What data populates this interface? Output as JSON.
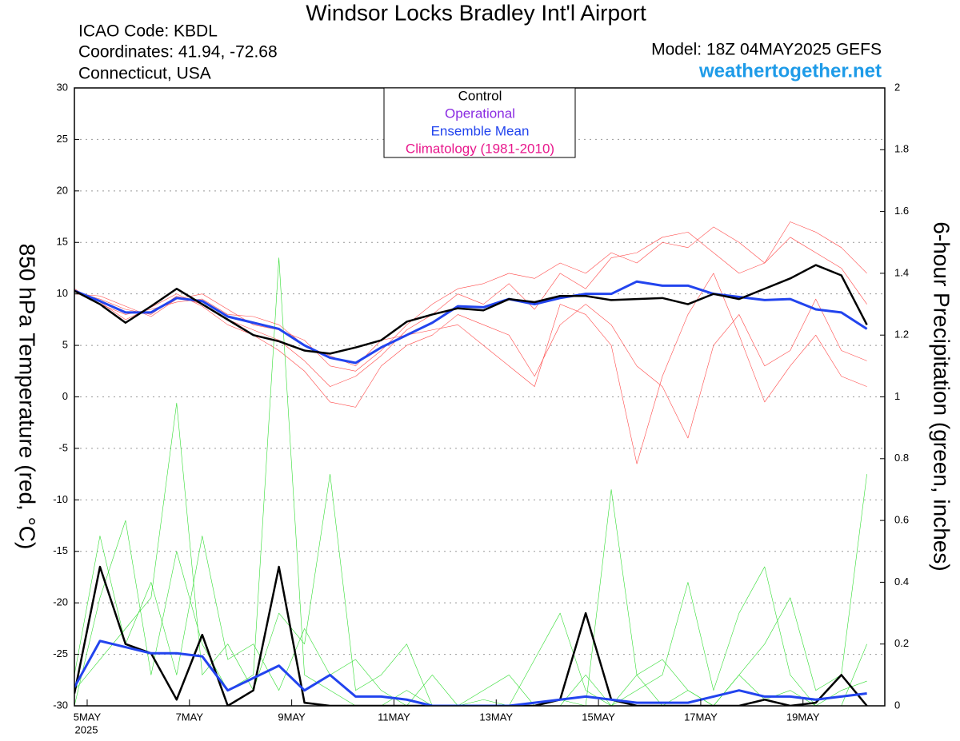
{
  "chart_data": {
    "type": "line",
    "title": "Windsor Locks Bradley Int'l Airport",
    "info_left": [
      "ICAO Code: KBDL",
      "Coordinates: 41.94, -72.68",
      "Connecticut, USA"
    ],
    "model": "Model: 18Z 04MAY2025 GEFS",
    "site": "weathertogether.net",
    "ylabel": "850 hPa Temperature (red, °C)",
    "y2label": "6-hour Precipitation (green, inches)",
    "x_year_label": "2025",
    "xlim": [
      -0.25,
      15.6
    ],
    "xticks": [
      {
        "value": 0,
        "label": "5MAY"
      },
      {
        "value": 2,
        "label": "7MAY"
      },
      {
        "value": 4,
        "label": "9MAY"
      },
      {
        "value": 6,
        "label": "11MAY"
      },
      {
        "value": 8,
        "label": "13MAY"
      },
      {
        "value": 10,
        "label": "15MAY"
      },
      {
        "value": 12,
        "label": "17MAY"
      },
      {
        "value": 14,
        "label": "19MAY"
      }
    ],
    "ylim": [
      -30,
      30
    ],
    "yticks": [
      -30,
      -25,
      -20,
      -15,
      -10,
      -5,
      0,
      5,
      10,
      15,
      20,
      25,
      30
    ],
    "y2lim": [
      0,
      2
    ],
    "y2ticks": [
      0,
      0.2,
      0.4,
      0.6,
      0.8,
      1,
      1.2,
      1.4,
      1.6,
      1.8,
      2
    ],
    "grid": true,
    "legend_extra": [
      {
        "label": "Operational",
        "color": "#8a2be2"
      },
      {
        "label": "Climatology (1981-2010)",
        "color": "#e8188c"
      }
    ],
    "x": [
      -0.25,
      0.25,
      0.75,
      1.25,
      1.75,
      2.25,
      2.75,
      3.25,
      3.75,
      4.25,
      4.75,
      5.25,
      5.75,
      6.25,
      6.75,
      7.25,
      7.75,
      8.25,
      8.75,
      9.25,
      9.75,
      10.25,
      10.75,
      11.25,
      11.75,
      12.25,
      12.75,
      13.25,
      13.75,
      14.25,
      14.75,
      15.25
    ],
    "series": [
      {
        "color": "#ff4a4a",
        "line_width": 0.6,
        "axis": "y",
        "values": [
          10.2,
          9.5,
          8.5,
          8.0,
          9.8,
          9.0,
          7.5,
          6.5,
          5.5,
          3.5,
          1.0,
          2.0,
          4.0,
          6.5,
          8.0,
          10.0,
          9.0,
          11.0,
          8.5,
          12.0,
          10.5,
          13.5,
          14.0,
          15.5,
          16.0,
          14.0,
          12.0,
          13.0,
          15.5,
          14.0,
          12.5,
          9.0
        ]
      },
      {
        "color": "#ff4a4a",
        "line_width": 0.6,
        "axis": "y",
        "values": [
          10.5,
          9.0,
          8.0,
          8.5,
          9.2,
          9.5,
          8.0,
          7.8,
          7.0,
          5.0,
          4.0,
          3.0,
          5.5,
          6.0,
          6.5,
          7.0,
          5.0,
          3.0,
          1.0,
          9.0,
          8.0,
          5.0,
          -6.5,
          2.0,
          8.0,
          12.0,
          6.0,
          -0.5,
          3.0,
          6.0,
          2.0,
          1.0
        ]
      },
      {
        "color": "#ff4a4a",
        "line_width": 0.6,
        "axis": "y",
        "values": [
          10.0,
          9.8,
          8.8,
          7.8,
          9.5,
          10.0,
          8.5,
          7.0,
          6.5,
          5.5,
          3.0,
          2.5,
          4.5,
          7.0,
          9.0,
          10.5,
          11.0,
          12.0,
          11.5,
          13.0,
          12.0,
          14.0,
          13.0,
          15.0,
          14.5,
          16.5,
          15.0,
          13.0,
          17.0,
          16.0,
          14.5,
          12.0
        ]
      },
      {
        "color": "#ff4a4a",
        "line_width": 0.6,
        "axis": "y",
        "values": [
          10.4,
          9.2,
          7.5,
          8.7,
          10.0,
          8.8,
          7.0,
          6.0,
          4.5,
          2.5,
          -0.5,
          -1.0,
          3.0,
          5.0,
          6.0,
          8.0,
          7.0,
          6.0,
          2.0,
          7.0,
          9.0,
          7.0,
          3.0,
          1.0,
          -4.0,
          5.0,
          8.0,
          3.0,
          4.5,
          9.5,
          4.5,
          3.5
        ]
      },
      {
        "color": "#33dd33",
        "line_width": 0.6,
        "axis": "y2",
        "values": [
          0.0,
          0.35,
          0.6,
          0.1,
          0.5,
          0.2,
          0.05,
          0.1,
          1.45,
          0.1,
          0.05,
          0,
          0,
          0.05,
          0,
          0,
          0,
          0,
          0,
          0.02,
          0,
          0.7,
          0.1,
          0,
          0.05,
          0,
          0.1,
          0.02,
          0.05,
          0,
          0,
          0.2
        ]
      },
      {
        "color": "#33dd33",
        "line_width": 0.6,
        "axis": "y2",
        "values": [
          0.05,
          0.15,
          0.25,
          0.35,
          0.98,
          0.1,
          0.2,
          0.05,
          0.3,
          0.2,
          0.75,
          0.05,
          0.1,
          0.2,
          0,
          0,
          0.05,
          0.1,
          0,
          0,
          0.1,
          0,
          0.05,
          0.1,
          0.4,
          0.05,
          0.3,
          0.45,
          0.1,
          0,
          0.05,
          0.08
        ]
      },
      {
        "color": "#33dd33",
        "line_width": 0.6,
        "axis": "y2",
        "values": [
          0.1,
          0.55,
          0.2,
          0.4,
          0.1,
          0.55,
          0.15,
          0.2,
          0.05,
          0.25,
          0.1,
          0.15,
          0.05,
          0,
          0.1,
          0,
          0.02,
          0,
          0.15,
          0.3,
          0.05,
          0,
          0.1,
          0.15,
          0.05,
          0,
          0.1,
          0.2,
          0.35,
          0.05,
          0.1,
          0.75
        ]
      },
      {
        "color": "#000000",
        "line_width": 2.5,
        "axis": "y2",
        "values": [
          0.04,
          0.45,
          0.2,
          0.17,
          0.02,
          0.23,
          0,
          0.05,
          0.45,
          0.01,
          0,
          0,
          0,
          0,
          0,
          0,
          0,
          0,
          0,
          0.02,
          0.3,
          0.02,
          0,
          0,
          0,
          0,
          0,
          0.02,
          0,
          0.01,
          0.1,
          0
        ]
      },
      {
        "color": "#2244ee",
        "line_width": 3,
        "axis": "y2",
        "values": [
          0.06,
          0.21,
          0.19,
          0.17,
          0.17,
          0.16,
          0.05,
          0.09,
          0.13,
          0.05,
          0.1,
          0.03,
          0.03,
          0.02,
          0,
          0,
          0,
          0,
          0.01,
          0.02,
          0.03,
          0.02,
          0.01,
          0.01,
          0.01,
          0.03,
          0.05,
          0.03,
          0.03,
          0.02,
          0.03,
          0.04
        ]
      },
      {
        "name": "Ensemble Mean",
        "color": "#2244ee",
        "line_width": 3,
        "axis": "y",
        "values": [
          10.3,
          9.3,
          8.2,
          8.2,
          9.6,
          9.3,
          7.8,
          7.2,
          6.6,
          5.0,
          3.8,
          3.3,
          4.8,
          6.0,
          7.2,
          8.8,
          8.7,
          9.5,
          9.0,
          9.6,
          10.0,
          10.0,
          11.2,
          10.8,
          10.8,
          10.0,
          9.7,
          9.4,
          9.5,
          8.5,
          8.2,
          6.6
        ]
      },
      {
        "name": "Control",
        "color": "#000000",
        "line_width": 2.5,
        "axis": "y",
        "values": [
          10.3,
          9,
          7.2,
          8.8,
          10.5,
          9,
          7.5,
          6.0,
          5.4,
          4.5,
          4.2,
          4.8,
          5.5,
          7.3,
          8,
          8.6,
          8.4,
          9.5,
          9.2,
          9.8,
          9.8,
          9.4,
          9.5,
          9.6,
          9.0,
          10.0,
          9.5,
          10.5,
          11.5,
          12.8,
          11.8,
          7.0
        ]
      }
    ]
  }
}
